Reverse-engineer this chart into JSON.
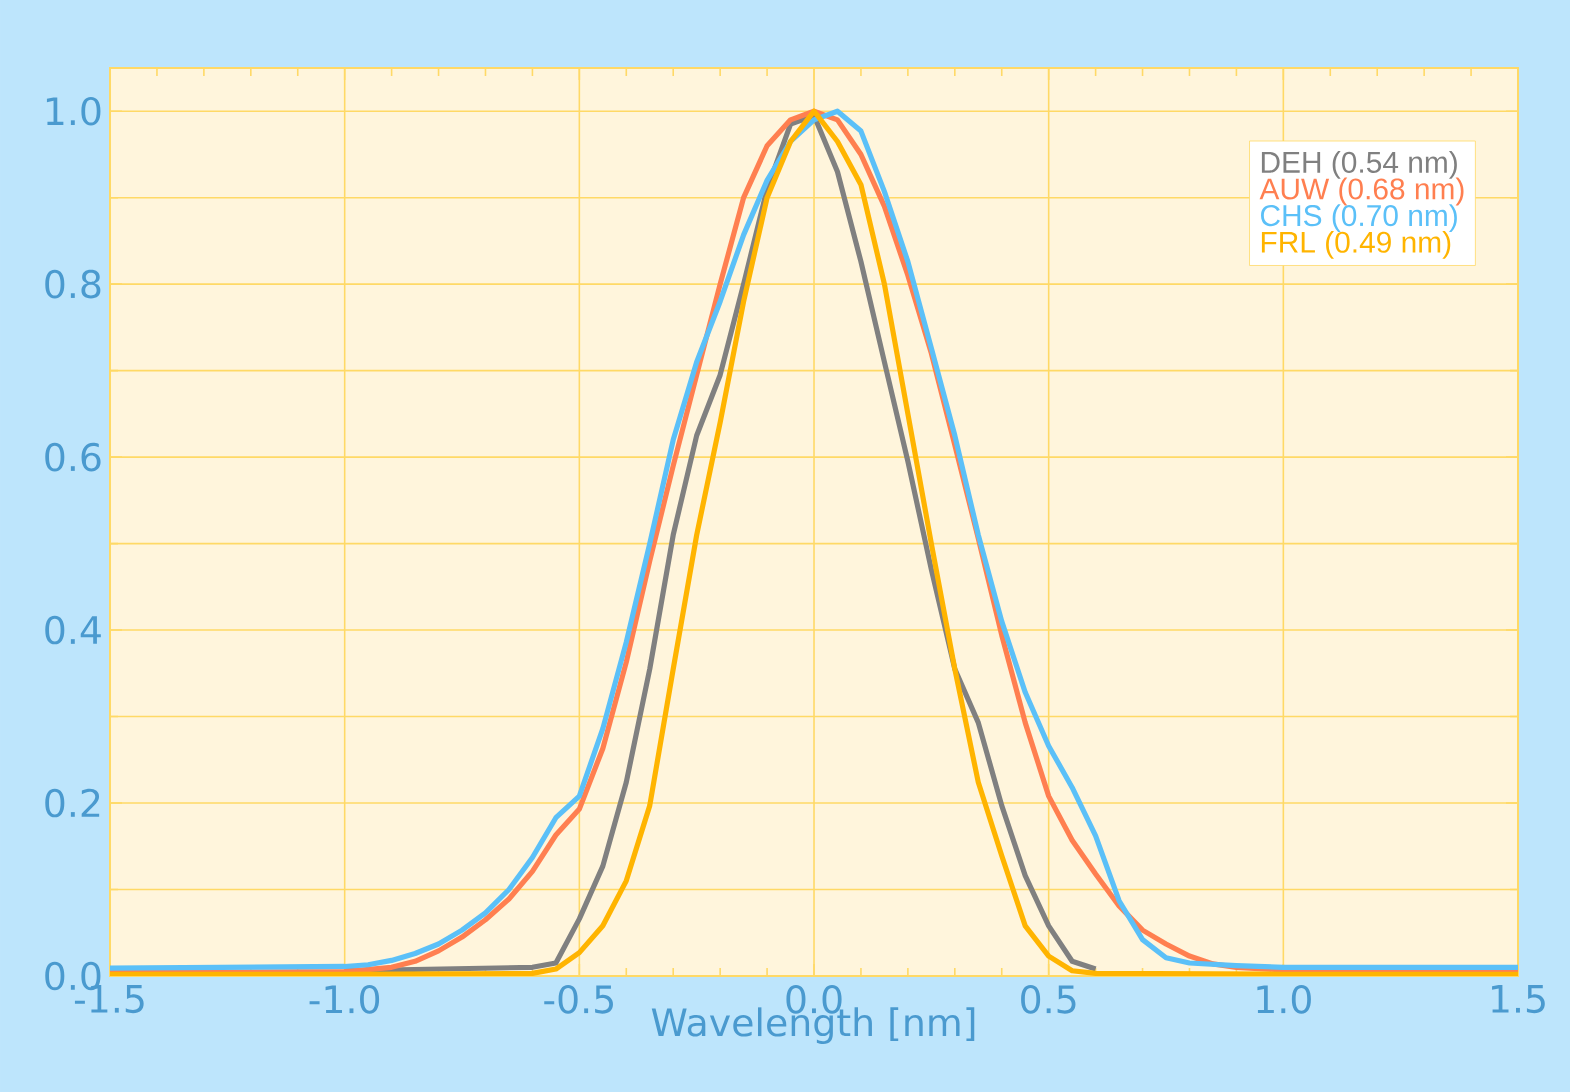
{
  "chart_data": {
    "type": "line",
    "xlabel": "Wavelength [nm]",
    "xlim": [
      -1.5,
      1.5
    ],
    "ylim": [
      0,
      1.05
    ],
    "xticks": [
      -1.5,
      {
        "value": -1.0,
        "label": "-1.0"
      },
      -0.5,
      {
        "value": 0,
        "label": "0.0"
      },
      0.5,
      {
        "value": 1.0,
        "label": "1.0"
      },
      1.5
    ],
    "yticks": [
      {
        "value": 0,
        "label": "0.0"
      },
      0.2,
      0.4,
      0.6,
      0.8,
      {
        "value": 1.0,
        "label": "1.0"
      }
    ],
    "grid": true,
    "legend": "top right",
    "marker": "none",
    "line_style": "solid",
    "series": [
      {
        "name": "DEH (0.54 nm)",
        "color": "#808080",
        "x": [
          -1.0,
          -0.6,
          -0.55,
          -0.5,
          -0.45,
          -0.4,
          -0.35,
          -0.3,
          -0.25,
          -0.2,
          -0.15,
          -0.1,
          -0.05,
          0,
          0.05,
          0.1,
          0.15,
          0.2,
          0.25,
          0.3,
          0.35,
          0.4,
          0.45,
          0.5,
          0.55,
          0.6
        ],
        "values": [
          0.006,
          0.01,
          0.015,
          0.066,
          0.127,
          0.224,
          0.355,
          0.51,
          0.625,
          0.695,
          0.8,
          0.91,
          0.985,
          0.995,
          0.93,
          0.826,
          0.71,
          0.595,
          0.47,
          0.355,
          0.293,
          0.197,
          0.116,
          0.058,
          0.017,
          0.008
        ]
      },
      {
        "name": "AUW (0.68 nm)",
        "color": "#ff7f50",
        "x": [
          -1.5,
          -1.0,
          -0.9,
          -0.85,
          -0.8,
          -0.75,
          -0.7,
          -0.65,
          -0.6,
          -0.55,
          -0.5,
          -0.45,
          -0.4,
          -0.35,
          -0.3,
          -0.25,
          -0.2,
          -0.15,
          -0.1,
          -0.05,
          0,
          0.05,
          0.1,
          0.15,
          0.2,
          0.25,
          0.3,
          0.35,
          0.4,
          0.45,
          0.5,
          0.55,
          0.6,
          0.65,
          0.7,
          0.75,
          0.8,
          0.85,
          0.9,
          1.0,
          1.5
        ],
        "values": [
          0.004,
          0.005,
          0.01,
          0.017,
          0.029,
          0.045,
          0.065,
          0.089,
          0.121,
          0.163,
          0.193,
          0.263,
          0.363,
          0.48,
          0.59,
          0.695,
          0.8,
          0.9,
          0.96,
          0.99,
          1.0,
          0.99,
          0.95,
          0.89,
          0.81,
          0.72,
          0.614,
          0.506,
          0.394,
          0.293,
          0.208,
          0.157,
          0.118,
          0.081,
          0.053,
          0.037,
          0.023,
          0.014,
          0.01,
          0.007,
          0.006
        ]
      },
      {
        "name": "CHS (0.70 nm)",
        "color": "#5bc0f8",
        "x": [
          -1.5,
          -1.0,
          -0.95,
          -0.9,
          -0.85,
          -0.8,
          -0.75,
          -0.7,
          -0.65,
          -0.6,
          -0.55,
          -0.5,
          -0.45,
          -0.4,
          -0.35,
          -0.3,
          -0.25,
          -0.2,
          -0.15,
          -0.1,
          -0.05,
          0,
          0.05,
          0.1,
          0.15,
          0.2,
          0.25,
          0.3,
          0.35,
          0.4,
          0.45,
          0.5,
          0.55,
          0.6,
          0.65,
          0.7,
          0.75,
          0.8,
          0.9,
          1.0,
          1.5
        ],
        "values": [
          0.009,
          0.011,
          0.013,
          0.018,
          0.026,
          0.037,
          0.053,
          0.073,
          0.1,
          0.137,
          0.183,
          0.208,
          0.286,
          0.386,
          0.5,
          0.62,
          0.71,
          0.78,
          0.857,
          0.92,
          0.965,
          0.99,
          1.0,
          0.977,
          0.907,
          0.826,
          0.726,
          0.625,
          0.51,
          0.41,
          0.328,
          0.266,
          0.218,
          0.162,
          0.087,
          0.042,
          0.021,
          0.015,
          0.012,
          0.01,
          0.01
        ]
      },
      {
        "name": "FRL (0.49 nm)",
        "color": "#ffb400",
        "x": [
          -1.5,
          -1.0,
          -0.6,
          -0.55,
          -0.5,
          -0.45,
          -0.4,
          -0.35,
          -0.3,
          -0.25,
          -0.2,
          -0.15,
          -0.1,
          -0.05,
          0,
          0.05,
          0.1,
          0.15,
          0.2,
          0.25,
          0.3,
          0.35,
          0.4,
          0.45,
          0.5,
          0.55,
          0.6,
          1.0,
          1.5
        ],
        "values": [
          0.002,
          0.002,
          0.003,
          0.008,
          0.027,
          0.058,
          0.11,
          0.197,
          0.355,
          0.51,
          0.64,
          0.78,
          0.9,
          0.965,
          1.0,
          0.965,
          0.915,
          0.8,
          0.65,
          0.5,
          0.355,
          0.224,
          0.139,
          0.058,
          0.023,
          0.006,
          0.003,
          0.002,
          0.002
        ]
      }
    ]
  }
}
